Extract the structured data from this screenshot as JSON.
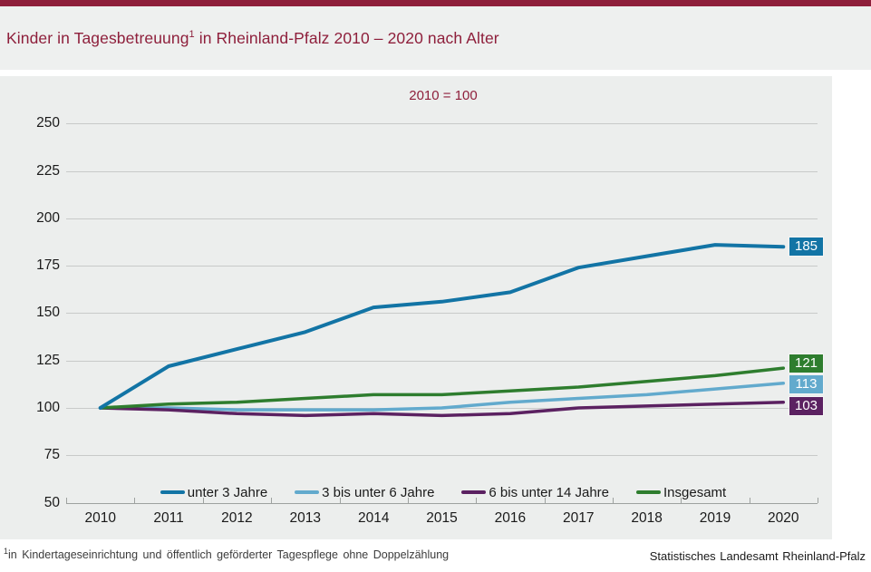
{
  "colors": {
    "maroon": "#8e1f3b",
    "series_blue": "#1274a5",
    "series_lightblue": "#62aacd",
    "series_purple": "#5b2161",
    "series_green": "#2e7d2e"
  },
  "header": {
    "title_main": "Kinder in Tagesbetreuung",
    "title_sup": "1",
    "title_rest": " in Rheinland-Pfalz 2010 – 2020 nach Alter"
  },
  "chart_data": {
    "type": "line",
    "title": "Kinder in Tagesbetreuung in Rheinland-Pfalz 2010 – 2020 nach Alter",
    "subtitle": "2010 = 100",
    "categories": [
      "2010",
      "2011",
      "2012",
      "2013",
      "2014",
      "2015",
      "2016",
      "2017",
      "2018",
      "2019",
      "2020"
    ],
    "series": [
      {
        "name": "unter 3 Jahre",
        "color": "#1274a5",
        "values": [
          100,
          122,
          131,
          140,
          153,
          156,
          161,
          174,
          180,
          186,
          185
        ],
        "end_label": "185"
      },
      {
        "name": "3 bis unter 6 Jahre",
        "color": "#62aacd",
        "values": [
          100,
          100,
          99,
          99,
          99,
          100,
          103,
          105,
          107,
          110,
          113
        ],
        "end_label": "113"
      },
      {
        "name": "6 bis unter 14 Jahre",
        "color": "#5b2161",
        "values": [
          100,
          99,
          97,
          96,
          97,
          96,
          97,
          100,
          101,
          102,
          103
        ],
        "end_label": "103"
      },
      {
        "name": "Insgesamt",
        "color": "#2e7d2e",
        "values": [
          100,
          102,
          103,
          105,
          107,
          107,
          109,
          111,
          114,
          117,
          121
        ],
        "end_label": "121"
      }
    ],
    "yticks": [
      250,
      225,
      200,
      175,
      150,
      125,
      100,
      75,
      50
    ],
    "ylim": [
      50,
      250
    ],
    "xlabel": "",
    "ylabel": "",
    "grid": true,
    "legend_position": "bottom"
  },
  "footer": {
    "footnote_sup": "1",
    "footnote_text": "in Kindertageseinrichtung und öffentlich geförderter Tagespflege ohne Doppelzählung",
    "source": "Statistisches Landesamt Rheinland-Pfalz"
  }
}
